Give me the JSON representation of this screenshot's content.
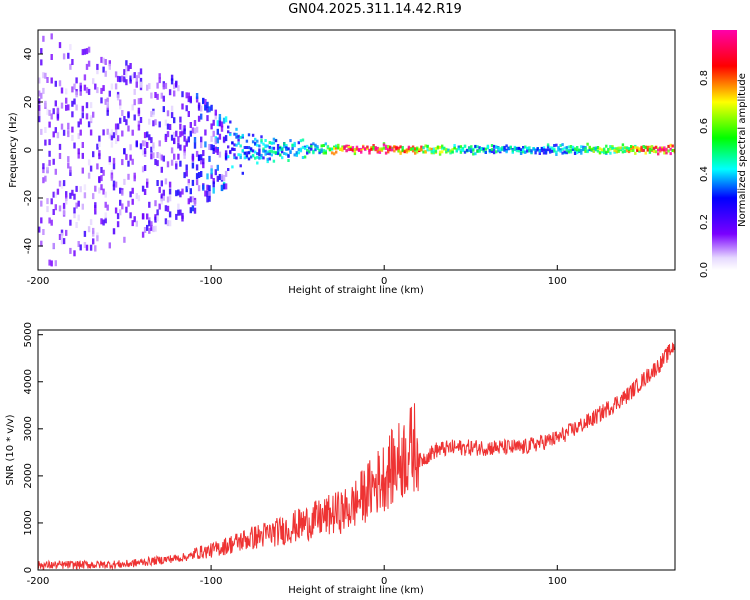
{
  "title": "GN04.2025.311.14.42.R19",
  "colors": {
    "snr_line": "#ee3333",
    "frame": "#000000",
    "colormap": [
      "#ffffff",
      "#e6d9ff",
      "#7a00ff",
      "#0000ff",
      "#00ffff",
      "#00ff00",
      "#ffff00",
      "#ff0000",
      "#ff00aa"
    ]
  },
  "chart_data": [
    {
      "type": "heatmap",
      "title": "GN04.2025.311.14.42.R19",
      "xlabel": "Height of straight line (km)",
      "ylabel": "Frequency (Hz)",
      "xlim": [
        -200,
        168
      ],
      "ylim": [
        -50,
        50
      ],
      "xticks": [
        "-200",
        "-100",
        "0",
        "100"
      ],
      "yticks": [
        "-40",
        "-20",
        "0",
        "20",
        "40"
      ],
      "colorbar": {
        "label": "Normalized spectral amplitude",
        "range": [
          0.0,
          1.0
        ],
        "ticks": [
          "0.0",
          "0.2",
          "0.4",
          "0.6",
          "0.8"
        ]
      },
      "description_points": [
        {
          "x": -200,
          "spread_hz": 50,
          "amplitude": 0.15
        },
        {
          "x": -120,
          "spread_hz": 30,
          "amplitude": 0.2
        },
        {
          "x": -100,
          "spread_hz": 20,
          "amplitude": 0.3
        },
        {
          "x": -80,
          "spread_hz": 8,
          "amplitude": 0.4
        },
        {
          "x": -40,
          "spread_hz": 3,
          "amplitude": 0.45
        },
        {
          "x": -20,
          "spread_hz": 2,
          "amplitude": 0.9
        },
        {
          "x": 0,
          "spread_hz": 2,
          "amplitude": 0.95
        },
        {
          "x": 50,
          "spread_hz": 2,
          "amplitude": 0.45
        },
        {
          "x": 100,
          "spread_hz": 2,
          "amplitude": 0.4
        },
        {
          "x": 150,
          "spread_hz": 2,
          "amplitude": 0.8
        },
        {
          "x": 168,
          "spread_hz": 2,
          "amplitude": 0.95
        }
      ]
    },
    {
      "type": "line",
      "xlabel": "Height of straight line (km)",
      "ylabel": "SNR (10 * v/v)",
      "xlim": [
        -200,
        168
      ],
      "ylim": [
        0,
        5100
      ],
      "xticks": [
        "-200",
        "-100",
        "0",
        "100"
      ],
      "yticks": [
        "0",
        "1000",
        "2000",
        "3000",
        "4000",
        "5000"
      ],
      "series": [
        {
          "x": [
            -200,
            -150,
            -120,
            -100,
            -80,
            -60,
            -40,
            -20,
            -10,
            0,
            10,
            20,
            30,
            40,
            60,
            80,
            100,
            120,
            140,
            160,
            168
          ],
          "y": [
            100,
            120,
            250,
            350,
            550,
            700,
            900,
            1100,
            1400,
            1700,
            2000,
            2300,
            2550,
            2600,
            2600,
            2600,
            2800,
            3200,
            3700,
            4400,
            4800
          ]
        }
      ]
    }
  ]
}
